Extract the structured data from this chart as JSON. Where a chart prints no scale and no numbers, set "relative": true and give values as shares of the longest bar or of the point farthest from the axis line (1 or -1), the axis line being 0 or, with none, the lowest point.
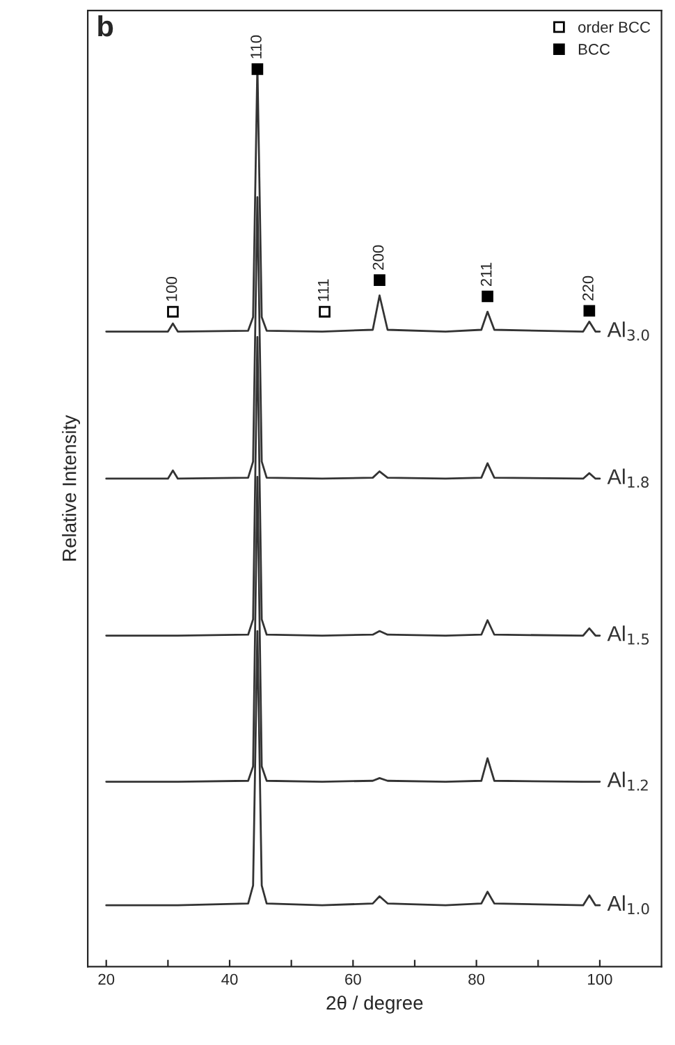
{
  "chart_data": {
    "type": "line",
    "relative": true,
    "xlabel": "2θ / degree",
    "ylabel": "Relative Intensity",
    "x": [
      20,
      30,
      30.8,
      31.6,
      43,
      43.8,
      44.5,
      45.2,
      46,
      55,
      63.2,
      64.3,
      65.6,
      75,
      80.8,
      81.8,
      82.9,
      97.3,
      98.3,
      99.3,
      100
    ],
    "xlim": [
      17,
      110
    ],
    "xticks": [
      20,
      {
        "value": 30,
        "label": null
      },
      40,
      {
        "value": 50,
        "label": null
      },
      60,
      {
        "value": 70,
        "label": null
      },
      80,
      {
        "value": 90,
        "label": null
      },
      100
    ],
    "series": [
      {
        "name": "Al$_{3.0}$",
        "color": "#333333",
        "values": [
          0.704,
          0.704,
          0.713,
          0.704,
          0.705,
          0.72,
          1.0,
          0.72,
          0.705,
          0.704,
          0.706,
          0.744,
          0.706,
          0.704,
          0.706,
          0.726,
          0.706,
          0.704,
          0.715,
          0.704,
          0.704
        ]
      },
      {
        "name": "Al$_{1.8}$",
        "color": "#333333",
        "values": [
          0.541,
          0.541,
          0.55,
          0.541,
          0.542,
          0.56,
          0.853,
          0.56,
          0.542,
          0.541,
          0.542,
          0.549,
          0.542,
          0.541,
          0.542,
          0.558,
          0.542,
          0.541,
          0.547,
          0.541,
          0.541
        ]
      },
      {
        "name": "Al$_{1.5}$",
        "color": "#333333",
        "values": [
          0.367,
          0.367,
          0.367,
          0.367,
          0.368,
          0.385,
          0.698,
          0.385,
          0.368,
          0.367,
          0.368,
          0.372,
          0.368,
          0.367,
          0.368,
          0.384,
          0.368,
          0.367,
          0.375,
          0.367,
          0.367
        ]
      },
      {
        "name": "Al$_{1.2}$",
        "color": "#333333",
        "values": [
          0.205,
          0.205,
          0.205,
          0.205,
          0.206,
          0.222,
          0.543,
          0.222,
          0.206,
          0.205,
          0.206,
          0.209,
          0.206,
          0.205,
          0.206,
          0.231,
          0.206,
          0.205,
          0.205,
          0.205,
          0.205
        ]
      },
      {
        "name": "Al$_{1.0}$",
        "color": "#333333",
        "values": [
          0.068,
          0.068,
          0.068,
          0.068,
          0.07,
          0.09,
          0.372,
          0.09,
          0.07,
          0.068,
          0.07,
          0.078,
          0.07,
          0.068,
          0.07,
          0.083,
          0.07,
          0.068,
          0.079,
          0.068,
          0.068
        ]
      },
      {
        "name": "order BCC",
        "type": "scatter",
        "marker": "square_open",
        "color": "#000000",
        "x": [
          30.8,
          55.4
        ],
        "values": [
          0.726,
          0.726
        ]
      },
      {
        "name": "BCC",
        "type": "scatter",
        "marker": "square",
        "color": "#000000",
        "x": [
          44.5,
          64.3,
          81.8,
          98.3
        ],
        "values": [
          0.995,
          0.761,
          0.743,
          0.727
        ]
      }
    ],
    "annotations": [
      "b",
      {
        "text": "100",
        "x": 30.8,
        "y": 0.726
      },
      {
        "text": "110",
        "x": 44.5,
        "y": 0.995
      },
      {
        "text": "111",
        "x": 55.4,
        "y": 0.726
      },
      {
        "text": "200",
        "x": 64.3,
        "y": 0.761
      },
      {
        "text": "211",
        "x": 81.8,
        "y": 0.743
      },
      {
        "text": "220",
        "x": 98.3,
        "y": 0.727
      }
    ],
    "legend": "top right",
    "grid": false
  }
}
